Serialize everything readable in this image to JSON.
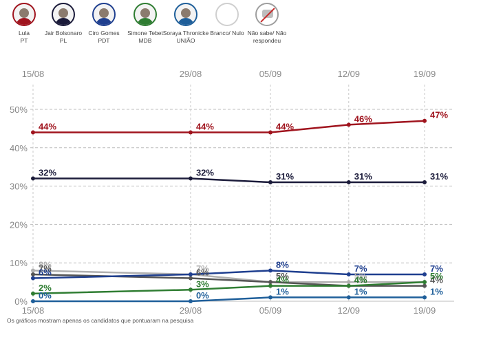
{
  "legend": [
    {
      "name": "Lula",
      "party": "PT",
      "color": "#a0141e",
      "icon": "avatar-lula"
    },
    {
      "name": "Jair Bolsonaro",
      "party": "PL",
      "color": "#1b1b3a",
      "icon": "avatar-bolsonaro"
    },
    {
      "name": "Ciro Gomes",
      "party": "PDT",
      "color": "#1f3f8f",
      "icon": "avatar-ciro"
    },
    {
      "name": "Simone Tebet",
      "party": "MDB",
      "color": "#2f7d32",
      "icon": "avatar-simone"
    },
    {
      "name": "Soraya Thronicke",
      "party": "UNIÃO",
      "color": "#1f5f9a",
      "icon": "avatar-soraya"
    },
    {
      "name": "Branco/ Nulo",
      "party": "",
      "color": "#bdbdbd",
      "icon": "empty-circle"
    },
    {
      "name": "Não sabe/ Não respondeu",
      "party": "",
      "color": "#555555",
      "icon": "no-answer-icon"
    }
  ],
  "footnote": "Os gráficos mostram apenas os candidatos que pontuaram na pesquisa",
  "chart_data": {
    "type": "line",
    "x": [
      "15/08",
      "29/08",
      "05/09",
      "12/09",
      "19/09"
    ],
    "ylim": [
      0,
      50
    ],
    "yticks": [
      "0%",
      "10%",
      "20%",
      "30%",
      "40%",
      "50%"
    ],
    "grid": true,
    "series": [
      {
        "name": "Branco/ Nulo",
        "color": "#b0b0b0",
        "values": [
          8,
          7,
          5,
          5,
          5
        ],
        "labels": [
          "8%",
          "7%",
          "5%",
          "5%",
          "5%"
        ]
      },
      {
        "name": "Não sabe/ Não respondeu",
        "color": "#555555",
        "values": [
          7,
          6,
          5,
          4,
          4
        ],
        "labels": [
          "7%",
          "6%",
          "5%",
          "4%",
          "4%"
        ]
      },
      {
        "name": "Simone Tebet",
        "color": "#2f7d32",
        "values": [
          2,
          3,
          4,
          4,
          5
        ],
        "labels": [
          "2%",
          "3%",
          "4%",
          "4%",
          "5%"
        ]
      },
      {
        "name": "Soraya Thronicke",
        "color": "#1f5f9a",
        "values": [
          0,
          0,
          1,
          1,
          1
        ],
        "labels": [
          "0%",
          "0%",
          "1%",
          "1%",
          "1%"
        ]
      },
      {
        "name": "Ciro Gomes",
        "color": "#1f3f8f",
        "values": [
          6,
          7,
          8,
          7,
          7
        ],
        "labels": [
          "6%",
          "",
          "8%",
          "7%",
          "7%"
        ]
      },
      {
        "name": "Jair Bolsonaro",
        "color": "#1b1b3a",
        "values": [
          32,
          32,
          31,
          31,
          31
        ],
        "labels": [
          "32%",
          "32%",
          "31%",
          "31%",
          "31%"
        ]
      },
      {
        "name": "Lula",
        "color": "#a0141e",
        "values": [
          44,
          44,
          44,
          46,
          47
        ],
        "labels": [
          "44%",
          "44%",
          "44%",
          "46%",
          "47%"
        ]
      }
    ]
  }
}
